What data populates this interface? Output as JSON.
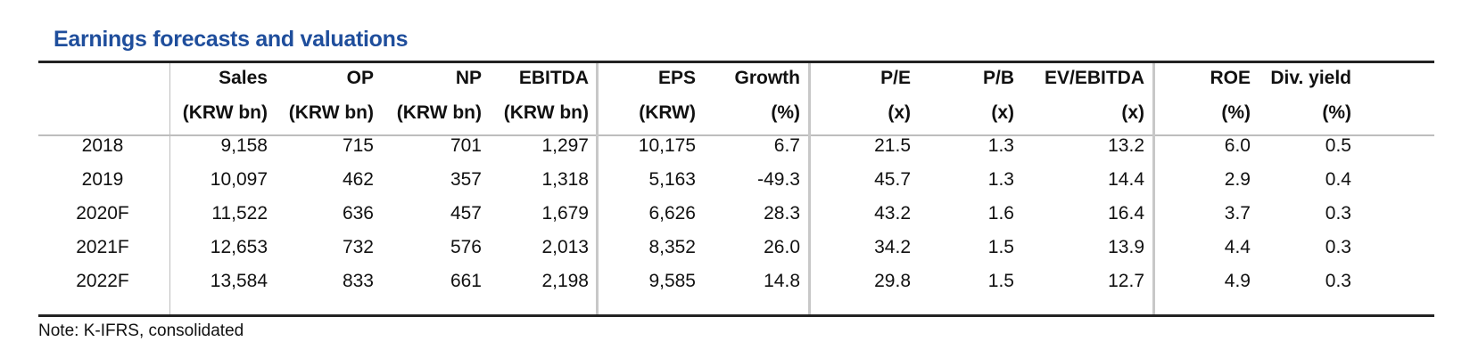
{
  "title": "Earnings forecasts and valuations",
  "columns": [
    {
      "name": "Sales",
      "unit": "(KRW bn)"
    },
    {
      "name": "OP",
      "unit": "(KRW bn)"
    },
    {
      "name": "NP",
      "unit": "(KRW bn)"
    },
    {
      "name": "EBITDA",
      "unit": "(KRW bn)"
    },
    {
      "name": "EPS",
      "unit": "(KRW)"
    },
    {
      "name": "Growth",
      "unit": "(%)"
    },
    {
      "name": "P/E",
      "unit": "(x)"
    },
    {
      "name": "P/B",
      "unit": "(x)"
    },
    {
      "name": "EV/EBITDA",
      "unit": "(x)"
    },
    {
      "name": "ROE",
      "unit": "(%)"
    },
    {
      "name": "Div. yield",
      "unit": "(%)"
    }
  ],
  "rows": [
    {
      "year": "2018",
      "values": [
        "9,158",
        "715",
        "701",
        "1,297",
        "10,175",
        "6.7",
        "21.5",
        "1.3",
        "13.2",
        "6.0",
        "0.5"
      ]
    },
    {
      "year": "2019",
      "values": [
        "10,097",
        "462",
        "357",
        "1,318",
        "5,163",
        "-49.3",
        "45.7",
        "1.3",
        "14.4",
        "2.9",
        "0.4"
      ]
    },
    {
      "year": "2020F",
      "values": [
        "11,522",
        "636",
        "457",
        "1,679",
        "6,626",
        "28.3",
        "43.2",
        "1.6",
        "16.4",
        "3.7",
        "0.3"
      ]
    },
    {
      "year": "2021F",
      "values": [
        "12,653",
        "732",
        "576",
        "2,013",
        "8,352",
        "26.0",
        "34.2",
        "1.5",
        "13.9",
        "4.4",
        "0.3"
      ]
    },
    {
      "year": "2022F",
      "values": [
        "13,584",
        "833",
        "661",
        "2,198",
        "9,585",
        "14.8",
        "29.8",
        "1.5",
        "12.7",
        "4.9",
        "0.3"
      ]
    }
  ],
  "note": "Note: K-IFRS, consolidated"
}
